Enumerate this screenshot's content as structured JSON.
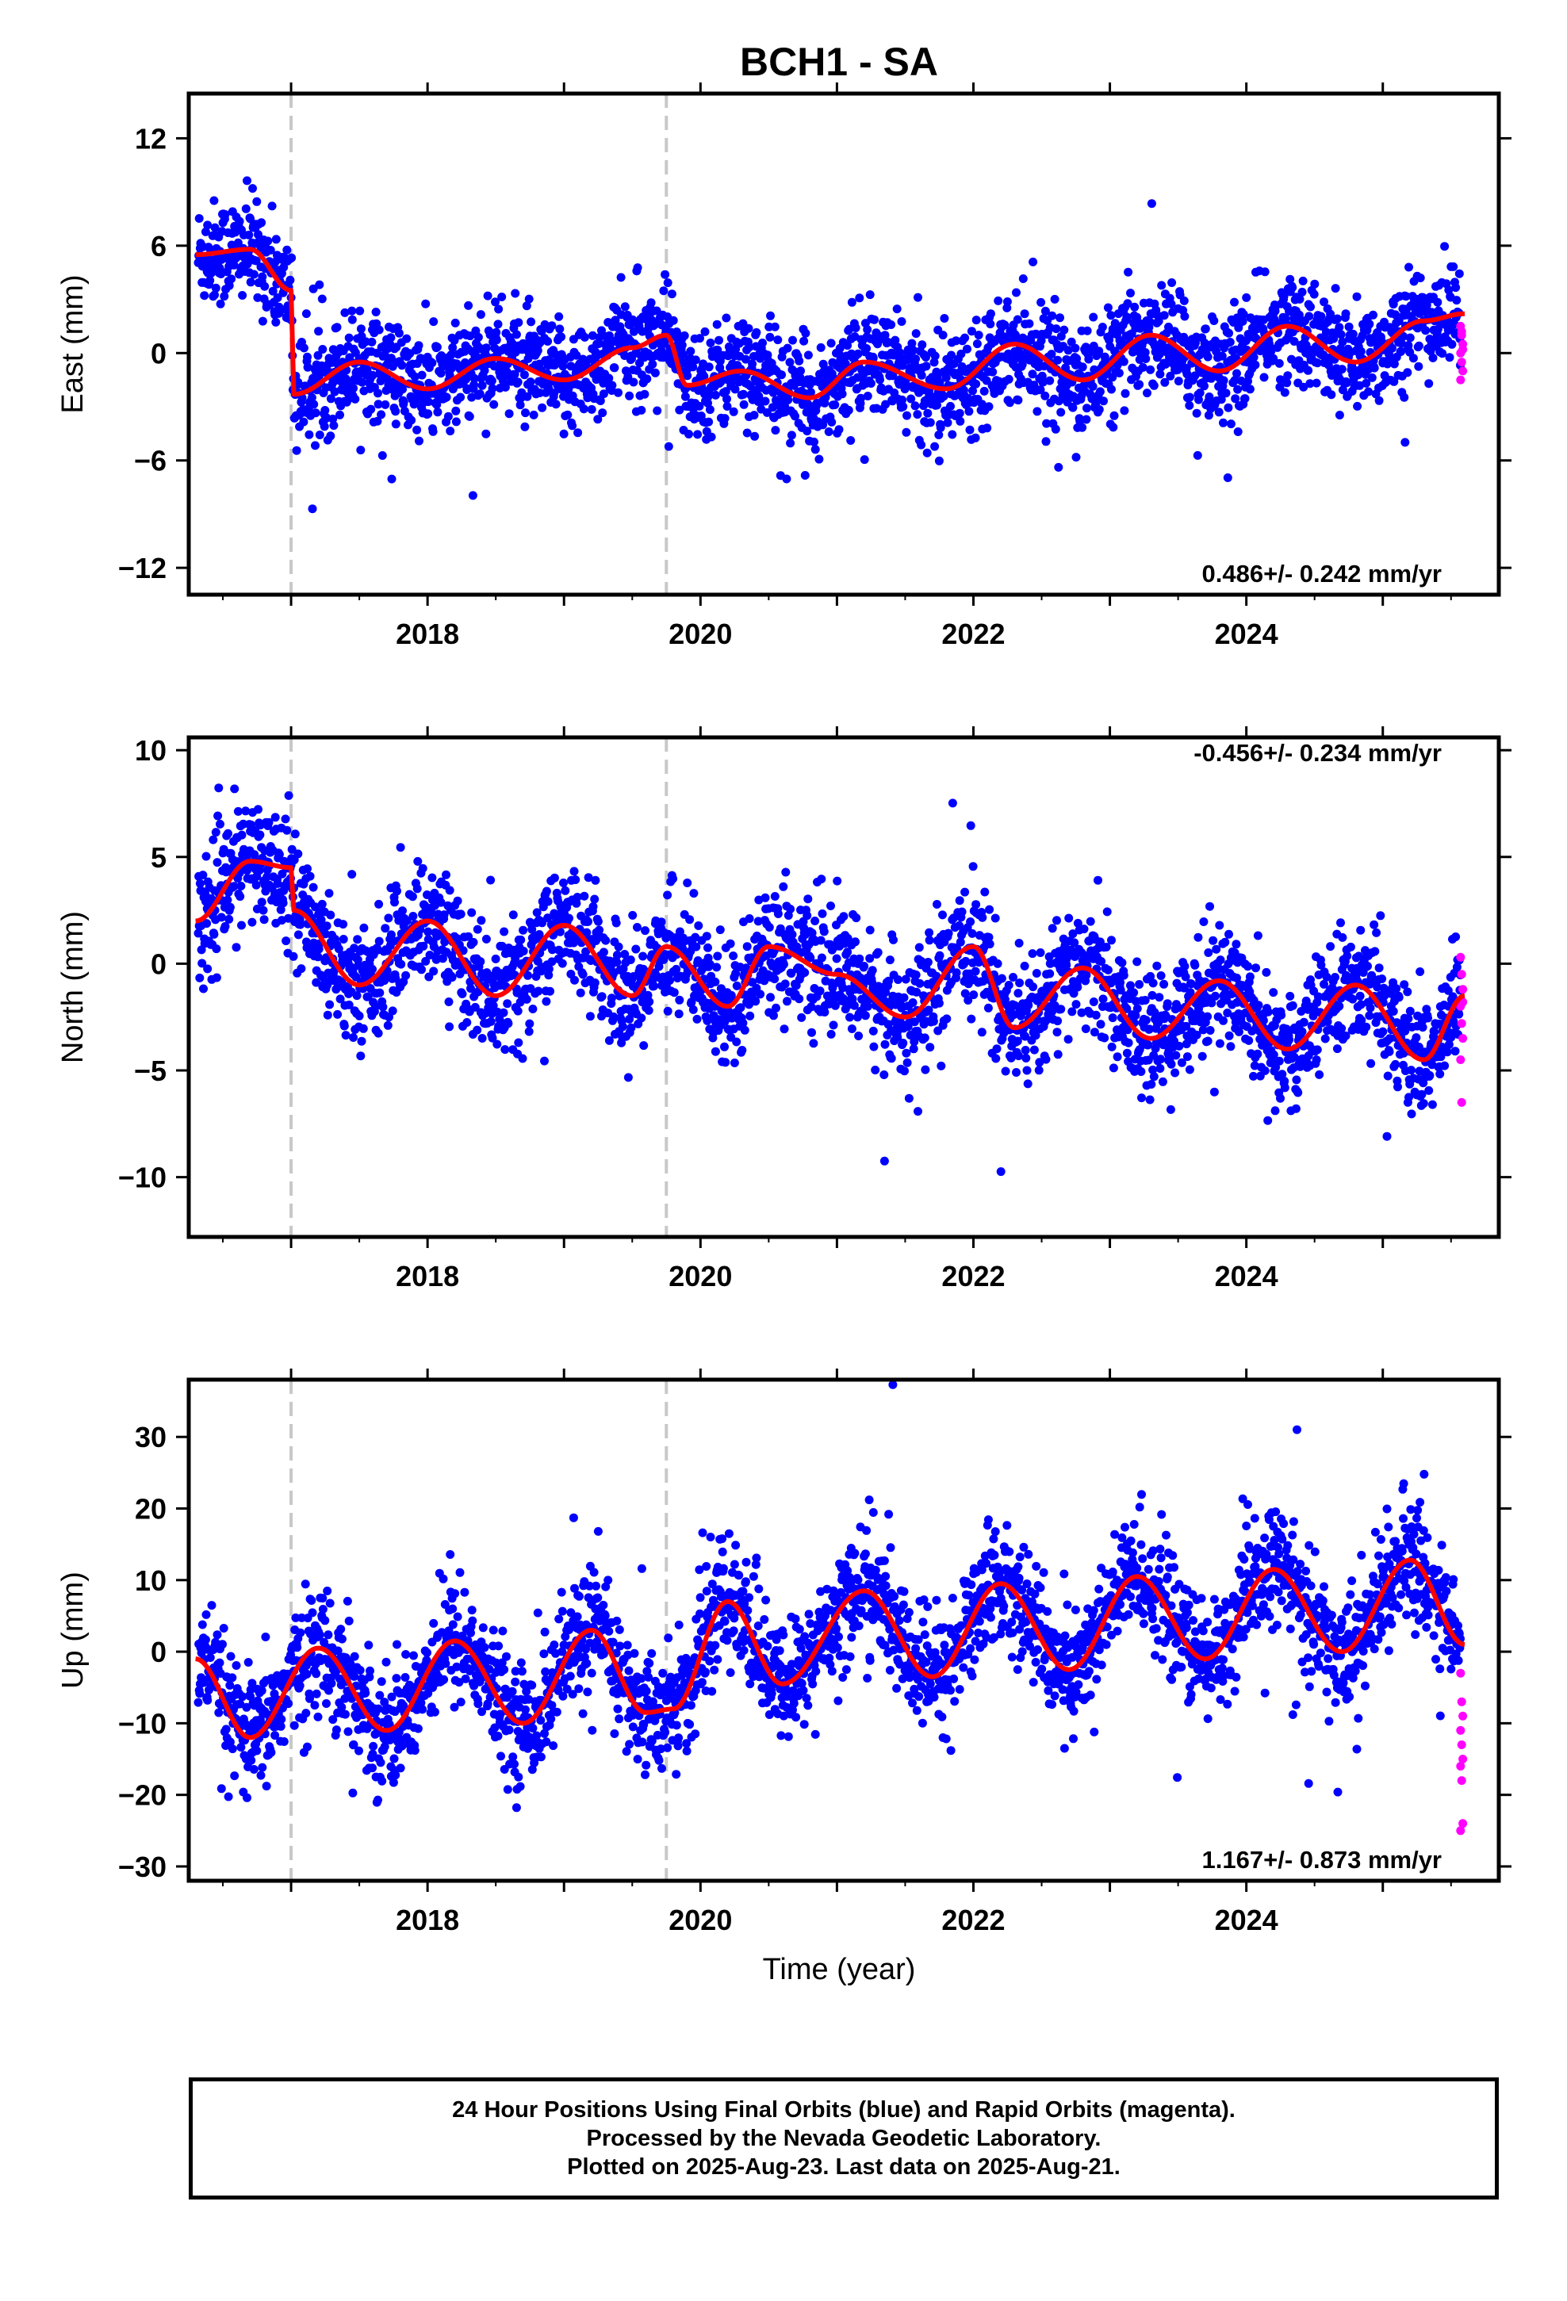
{
  "chart_data": {
    "type": "scatter",
    "title": "BCH1 - SA",
    "xlabel": "Time (year)",
    "x_tick_labels": [
      "2018",
      "2020",
      "2022",
      "2024"
    ],
    "xlim": [
      2016.25,
      2025.85
    ],
    "grid": false,
    "colors": {
      "final": "#0000ff",
      "rapid": "#ff00ff",
      "model": "#ff0000",
      "event_lines": "#c8c8c8"
    },
    "event_lines": [
      2017.0,
      2019.75
    ],
    "panels": [
      {
        "name": "east",
        "ylabel": "East (mm)",
        "ylim": [
          -13.5,
          14.5
        ],
        "yticks": [
          12,
          6,
          0,
          -6,
          -12
        ],
        "y_tick_labels": [
          "12",
          "6",
          "0",
          "−6",
          "−12"
        ],
        "rate_text": "0.486+/- 0.242 mm/yr",
        "model_knots": [
          [
            2016.3,
            5.5
          ],
          [
            2016.7,
            5.8
          ],
          [
            2017.0,
            3.5
          ],
          [
            2017.02,
            -2.3
          ],
          [
            2017.5,
            -0.5
          ],
          [
            2018.0,
            -2.0
          ],
          [
            2018.5,
            -0.3
          ],
          [
            2019.0,
            -1.5
          ],
          [
            2019.5,
            0.3
          ],
          [
            2019.75,
            1.0
          ],
          [
            2019.9,
            -1.8
          ],
          [
            2020.3,
            -1.0
          ],
          [
            2020.8,
            -2.5
          ],
          [
            2021.2,
            -0.5
          ],
          [
            2021.8,
            -2.0
          ],
          [
            2022.3,
            0.5
          ],
          [
            2022.8,
            -1.5
          ],
          [
            2023.3,
            1.0
          ],
          [
            2023.8,
            -1.0
          ],
          [
            2024.3,
            1.5
          ],
          [
            2024.8,
            -0.5
          ],
          [
            2025.3,
            1.8
          ],
          [
            2025.6,
            2.2
          ]
        ],
        "rapid_y": [
          1.5,
          1.0,
          0.5,
          0.0,
          -0.5,
          -1.0,
          -1.5,
          1.2,
          0.2
        ]
      },
      {
        "name": "north",
        "ylabel": "North (mm)",
        "ylim": [
          -12.8,
          10.6
        ],
        "yticks": [
          10,
          5,
          0,
          -5,
          -10
        ],
        "y_tick_labels": [
          "10",
          "5",
          "0",
          "−5",
          "−10"
        ],
        "rate_text": "-0.456+/- 0.234 mm/yr",
        "model_knots": [
          [
            2016.3,
            2.0
          ],
          [
            2016.7,
            4.8
          ],
          [
            2017.0,
            4.5
          ],
          [
            2017.02,
            2.5
          ],
          [
            2017.5,
            -1.0
          ],
          [
            2018.0,
            2.0
          ],
          [
            2018.5,
            -1.5
          ],
          [
            2019.0,
            1.8
          ],
          [
            2019.5,
            -1.5
          ],
          [
            2019.75,
            0.8
          ],
          [
            2020.2,
            -2.0
          ],
          [
            2020.5,
            0.8
          ],
          [
            2021.0,
            -0.5
          ],
          [
            2021.5,
            -2.5
          ],
          [
            2022.0,
            0.8
          ],
          [
            2022.3,
            -3.0
          ],
          [
            2022.8,
            -0.2
          ],
          [
            2023.3,
            -3.5
          ],
          [
            2023.8,
            -0.8
          ],
          [
            2024.3,
            -4.0
          ],
          [
            2024.8,
            -1.0
          ],
          [
            2025.3,
            -4.5
          ],
          [
            2025.6,
            -1.5
          ]
        ],
        "rapid_y": [
          0.3,
          -0.5,
          -1.2,
          -2.0,
          -2.8,
          -3.5,
          -4.5,
          -6.5,
          -1.8
        ]
      },
      {
        "name": "up",
        "ylabel": "Up (mm)",
        "ylim": [
          -32,
          38
        ],
        "yticks": [
          30,
          20,
          10,
          0,
          -10,
          -20,
          -30
        ],
        "y_tick_labels": [
          "30",
          "20",
          "10",
          "0",
          "−10",
          "−20",
          "−30"
        ],
        "rate_text": "1.167+/- 0.873 mm/yr",
        "model_knots": [
          [
            2016.3,
            -1.0
          ],
          [
            2016.7,
            -12.0
          ],
          [
            2017.2,
            0.5
          ],
          [
            2017.7,
            -11.0
          ],
          [
            2018.2,
            1.5
          ],
          [
            2018.7,
            -10.0
          ],
          [
            2019.2,
            3.0
          ],
          [
            2019.6,
            -8.5
          ],
          [
            2019.8,
            -8.0
          ],
          [
            2020.2,
            7.0
          ],
          [
            2020.6,
            -4.5
          ],
          [
            2021.2,
            8.5
          ],
          [
            2021.7,
            -3.5
          ],
          [
            2022.2,
            9.5
          ],
          [
            2022.7,
            -2.5
          ],
          [
            2023.2,
            10.5
          ],
          [
            2023.7,
            -1.0
          ],
          [
            2024.2,
            11.5
          ],
          [
            2024.7,
            0.0
          ],
          [
            2025.2,
            12.8
          ],
          [
            2025.6,
            1.0
          ]
        ],
        "rapid_y": [
          -3,
          -7,
          -9,
          -11,
          -13,
          -15,
          -16,
          -18,
          -24,
          -25
        ]
      }
    ]
  },
  "footer": {
    "line1": "24 Hour Positions Using Final Orbits (blue) and Rapid Orbits (magenta).",
    "line2": "Processed by the Nevada Geodetic Laboratory.",
    "line3": "Plotted on 2025-Aug-23. Last data on 2025-Aug-21."
  }
}
